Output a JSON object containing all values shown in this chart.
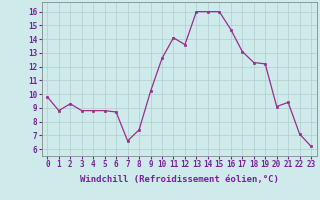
{
  "x": [
    0,
    1,
    2,
    3,
    4,
    5,
    6,
    7,
    8,
    9,
    10,
    11,
    12,
    13,
    14,
    15,
    16,
    17,
    18,
    19,
    20,
    21,
    22,
    23
  ],
  "y": [
    9.8,
    8.8,
    9.3,
    8.8,
    8.8,
    8.8,
    8.7,
    6.6,
    7.4,
    10.2,
    12.6,
    14.1,
    13.6,
    16.0,
    16.0,
    16.0,
    14.7,
    13.1,
    12.3,
    12.2,
    9.1,
    9.4,
    7.1,
    6.2
  ],
  "line_color": "#9b2d8e",
  "marker": "s",
  "markersize": 2.0,
  "linewidth": 0.9,
  "xlabel": "Windchill (Refroidissement éolien,°C)",
  "xlabel_fontsize": 6.5,
  "xlim": [
    -0.5,
    23.5
  ],
  "ylim": [
    5.5,
    16.7
  ],
  "yticks": [
    6,
    7,
    8,
    9,
    10,
    11,
    12,
    13,
    14,
    15,
    16
  ],
  "xticks": [
    0,
    1,
    2,
    3,
    4,
    5,
    6,
    7,
    8,
    9,
    10,
    11,
    12,
    13,
    14,
    15,
    16,
    17,
    18,
    19,
    20,
    21,
    22,
    23
  ],
  "xtick_labels": [
    "0",
    "1",
    "2",
    "3",
    "4",
    "5",
    "6",
    "7",
    "8",
    "9",
    "10",
    "11",
    "12",
    "13",
    "14",
    "15",
    "16",
    "17",
    "18",
    "19",
    "20",
    "21",
    "22",
    "23"
  ],
  "tick_fontsize": 5.5,
  "bg_color": "#ceeaea",
  "grid_color": "#b0cece",
  "grid_linewidth": 0.5
}
